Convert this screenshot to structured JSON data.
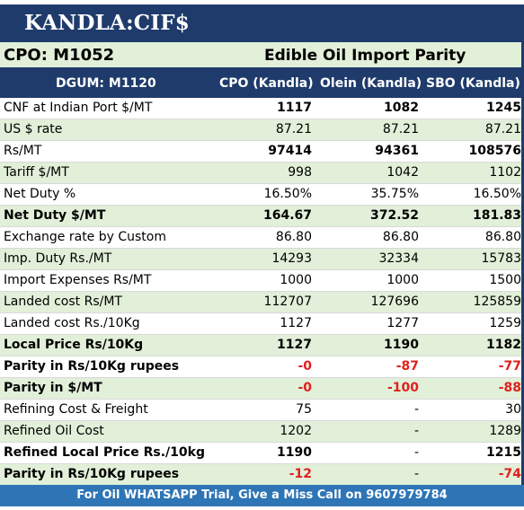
{
  "banner": {
    "title": "KANDLA:CIF$"
  },
  "subheader": {
    "contract": "CPO: M1052",
    "title": "Edible Oil Import Parity"
  },
  "columns": {
    "label": "DGUM: M1120",
    "c1": "CPO (Kandla)",
    "c2": "Olein (Kandla)",
    "c3": "SBO (Kandla)"
  },
  "rows": [
    {
      "label": "CNF at Indian Port $/MT",
      "c1": "1117",
      "c2": "1082",
      "c3": "1245"
    },
    {
      "label": "US $ rate",
      "c1": "87.21",
      "c2": "87.21",
      "c3": "87.21"
    },
    {
      "label": "Rs/MT",
      "c1": "97414",
      "c2": "94361",
      "c3": "108576"
    },
    {
      "label": "Tariff $/MT",
      "c1": "998",
      "c2": "1042",
      "c3": "1102"
    },
    {
      "label": "Net Duty %",
      "c1": "16.50%",
      "c2": "35.75%",
      "c3": "16.50%"
    },
    {
      "label": "Net Duty $/MT",
      "c1": "164.67",
      "c2": "372.52",
      "c3": "181.83"
    },
    {
      "label": "Exchange rate by Custom",
      "c1": "86.80",
      "c2": "86.80",
      "c3": "86.80"
    },
    {
      "label": "Imp. Duty Rs./MT",
      "c1": "14293",
      "c2": "32334",
      "c3": "15783"
    },
    {
      "label": "Import Expenses Rs/MT",
      "c1": "1000",
      "c2": "1000",
      "c3": "1500"
    },
    {
      "label": "Landed cost Rs/MT",
      "c1": "112707",
      "c2": "127696",
      "c3": "125859"
    },
    {
      "label": "Landed cost Rs./10Kg",
      "c1": "1127",
      "c2": "1277",
      "c3": "1259"
    },
    {
      "label": "Local Price Rs/10Kg",
      "c1": "1127",
      "c2": "1190",
      "c3": "1182"
    },
    {
      "label": "Parity in Rs/10Kg rupees",
      "c1": "-0",
      "c2": "-87",
      "c3": "-77"
    },
    {
      "label": "Parity in $/MT",
      "c1": "-0",
      "c2": "-100",
      "c3": "-88"
    },
    {
      "label": "Refining Cost & Freight",
      "c1": "75",
      "c2": "-",
      "c3": "30"
    },
    {
      "label": "Refined Oil Cost",
      "c1": "1202",
      "c2": "-",
      "c3": "1289"
    },
    {
      "label": "Refined Local Price Rs./10kg",
      "c1": "1190",
      "c2": "-",
      "c3": "1215"
    },
    {
      "label": "Parity in Rs/10Kg rupees",
      "c1": "-12",
      "c2": "-",
      "c3": "-74"
    }
  ],
  "footer": {
    "text": "For Oil WHATSAPP Trial, Give a Miss Call on 9607979784"
  },
  "colors": {
    "navy": "#1f3b6b",
    "green_band": "#e2efd9",
    "footer_blue": "#2e75b6",
    "negative_red": "#e0201e"
  }
}
